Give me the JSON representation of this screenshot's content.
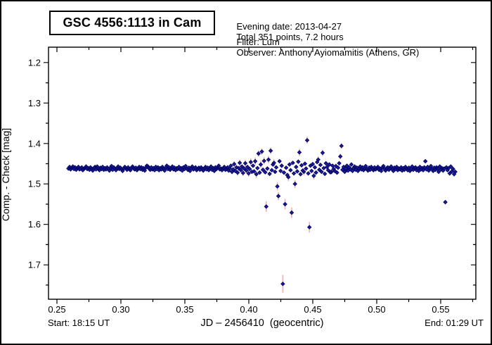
{
  "window": {
    "bg": "#ffffff",
    "border_color": "#000000"
  },
  "title_box": {
    "label": "GSC 4556:1113 in Cam"
  },
  "header": {
    "evening_date": "Evening date: 2013-04-27",
    "total_points": "Total 351 points, 7.2 hours",
    "filter": "Filter: Lum",
    "observer": "Observer: Anthony Ayiomamitis (Athens, GR)"
  },
  "footer": {
    "start": "Start: 18:15 UT",
    "end": "End: 01:29 UT"
  },
  "chart_data": {
    "type": "scatter",
    "title": "GSC 4556:1113 in Cam",
    "xlabel": "JD – 2456410  (geocentric)",
    "ylabel": "Comp. - Check [mag]",
    "y_axis_inverted": true,
    "grid": false,
    "legend": "none",
    "xlim": [
      0.2434,
      0.5775
    ],
    "ylim_top_to_bottom": [
      1.162,
      1.785
    ],
    "x_major_ticks": [
      0.25,
      0.3,
      0.35,
      0.4,
      0.45,
      0.5,
      0.55
    ],
    "x_tick_labels": [
      "0.25",
      "0.30",
      "0.35",
      "0.40",
      "0.45",
      "0.50",
      "0.55"
    ],
    "x_minor_ticks": [
      0.275,
      0.325,
      0.375,
      0.425,
      0.475,
      0.525,
      0.575
    ],
    "y_major_ticks": [
      1.2,
      1.3,
      1.4,
      1.5,
      1.6,
      1.7
    ],
    "y_tick_labels": [
      "1.2",
      "1.3",
      "1.4",
      "1.5",
      "1.6",
      "1.7"
    ],
    "y_minor_ticks": [
      1.25,
      1.35,
      1.45,
      1.55,
      1.65,
      1.75
    ],
    "marker": {
      "shape": "diamond",
      "color": "#1b1b9e",
      "edge": "#050563",
      "size": 5
    },
    "error_bar_color": "#f0b2ba",
    "axis_color": "#000000",
    "series": [
      {
        "name": "Comp - Check",
        "x_start": 0.259,
        "x_step": 0.000864,
        "default_err": 0.002,
        "mags": [
          1.462,
          1.458,
          1.464,
          1.46,
          1.457,
          1.463,
          1.459,
          1.465,
          1.461,
          1.458,
          1.464,
          1.462,
          1.459,
          1.466,
          1.463,
          1.46,
          1.457,
          1.463,
          1.461,
          1.465,
          1.459,
          1.463,
          1.467,
          1.461,
          1.458,
          1.464,
          1.457,
          1.462,
          1.466,
          1.46,
          1.463,
          1.458,
          1.465,
          1.461,
          1.464,
          1.459,
          1.462,
          1.467,
          1.46,
          1.456,
          1.465,
          1.459,
          1.462,
          1.466,
          1.461,
          1.457,
          1.463,
          1.46,
          1.464,
          1.468,
          1.462,
          1.458,
          1.461,
          1.465,
          1.459,
          1.463,
          1.466,
          1.46,
          1.457,
          1.462,
          1.464,
          1.46,
          1.466,
          1.462,
          1.458,
          1.463,
          1.459,
          1.465,
          1.461,
          1.467,
          1.46,
          1.455,
          1.457,
          1.462,
          1.465,
          1.459,
          1.464,
          1.461,
          1.466,
          1.458,
          1.463,
          1.459,
          1.466,
          1.461,
          1.464,
          1.458,
          1.462,
          1.467,
          1.46,
          1.455,
          1.463,
          1.459,
          1.465,
          1.462,
          1.457,
          1.464,
          1.46,
          1.466,
          1.461,
          1.463,
          1.458,
          1.464,
          1.461,
          1.467,
          1.459,
          1.463,
          1.456,
          1.462,
          1.465,
          1.46,
          1.468,
          1.461,
          1.457,
          1.464,
          1.462,
          1.459,
          1.466,
          1.463,
          1.46,
          1.465,
          1.459,
          1.463,
          1.467,
          1.461,
          1.458,
          1.464,
          1.46,
          1.466,
          1.462,
          1.457,
          1.465,
          1.461,
          1.468,
          1.459,
          1.463,
          1.46,
          1.455,
          1.464,
          1.462,
          1.466,
          1.461,
          1.458,
          1.465,
          1.463,
          1.459,
          1.467,
          1.462,
          1.455,
          1.47,
          1.464,
          1.451,
          1.468,
          1.459,
          1.472,
          1.461,
          1.448,
          1.466,
          1.457,
          1.473,
          1.462,
          1.449,
          1.467,
          1.458,
          1.474,
          1.463,
          1.446,
          1.47,
          1.455,
          1.469,
          1.444,
          1.476,
          1.461,
          1.425,
          1.472,
          1.452,
          1.42,
          1.465,
          1.443,
          1.471,
          1.556,
          1.462,
          1.44,
          1.475,
          1.418,
          1.466,
          1.452,
          1.448,
          1.47,
          1.459,
          1.506,
          1.53,
          1.444,
          1.468,
          1.455,
          1.747,
          1.472,
          1.55,
          1.46,
          1.478,
          1.483,
          1.452,
          1.466,
          1.571,
          1.448,
          1.474,
          1.5,
          1.458,
          1.469,
          1.445,
          1.422,
          1.476,
          1.454,
          1.467,
          1.47,
          1.45,
          1.462,
          1.392,
          1.474,
          1.607,
          1.455,
          1.468,
          1.451,
          1.48,
          1.459,
          1.472,
          1.446,
          1.44,
          1.465,
          1.453,
          1.47,
          1.423,
          1.461,
          1.475,
          1.449,
          1.458,
          1.466,
          1.452,
          1.471,
          1.47,
          1.455,
          1.463,
          1.468,
          1.456,
          1.472,
          1.46,
          1.449,
          1.432,
          1.406,
          1.465,
          1.458,
          1.47,
          1.462,
          1.455,
          1.467,
          1.459,
          1.464,
          1.452,
          1.468,
          1.461,
          1.457,
          1.465,
          1.46,
          1.468,
          1.463,
          1.457,
          1.464,
          1.459,
          1.466,
          1.462,
          1.456,
          1.463,
          1.467,
          1.46,
          1.465,
          1.458,
          1.462,
          1.466,
          1.459,
          1.464,
          1.461,
          1.458,
          1.465,
          1.462,
          1.468,
          1.46,
          1.456,
          1.463,
          1.467,
          1.461,
          1.459,
          1.465,
          1.462,
          1.457,
          1.464,
          1.468,
          1.46,
          1.463,
          1.458,
          1.466,
          1.462,
          1.464,
          1.459,
          1.467,
          1.461,
          1.465,
          1.458,
          1.462,
          1.466,
          1.46,
          1.468,
          1.463,
          1.457,
          1.465,
          1.461,
          1.459,
          1.466,
          1.462,
          1.468,
          1.458,
          1.464,
          1.461,
          1.466,
          1.459,
          1.444,
          1.464,
          1.458,
          1.467,
          1.462,
          1.456,
          1.463,
          1.468,
          1.46,
          1.465,
          1.459,
          1.463,
          1.47,
          1.457,
          1.464,
          1.461,
          1.467,
          1.462,
          1.545,
          1.459,
          1.466,
          1.461,
          1.474,
          1.457,
          1.469,
          1.463,
          1.476,
          1.47
        ],
        "errs": {
          "148": 0.006,
          "150": 0.007,
          "153": 0.007,
          "155": 0.008,
          "158": 0.007,
          "160": 0.008,
          "163": 0.008,
          "165": 0.009,
          "169": 0.009,
          "170": 0.009,
          "172": 0.008,
          "174": 0.009,
          "175": 0.008,
          "177": 0.009,
          "179": 0.013,
          "181": 0.009,
          "183": 0.008,
          "186": 0.009,
          "189": 0.01,
          "190": 0.01,
          "194": 0.022,
          "196": 0.013,
          "199": 0.01,
          "202": 0.013,
          "205": 0.01,
          "209": 0.009,
          "213": 0.009,
          "216": 0.009,
          "218": 0.013,
          "222": 0.009,
          "226": 0.008,
          "230": 0.008,
          "234": 0.007,
          "238": 0.007,
          "242": 0.006,
          "246": 0.007,
          "247": 0.007
        }
      }
    ]
  }
}
